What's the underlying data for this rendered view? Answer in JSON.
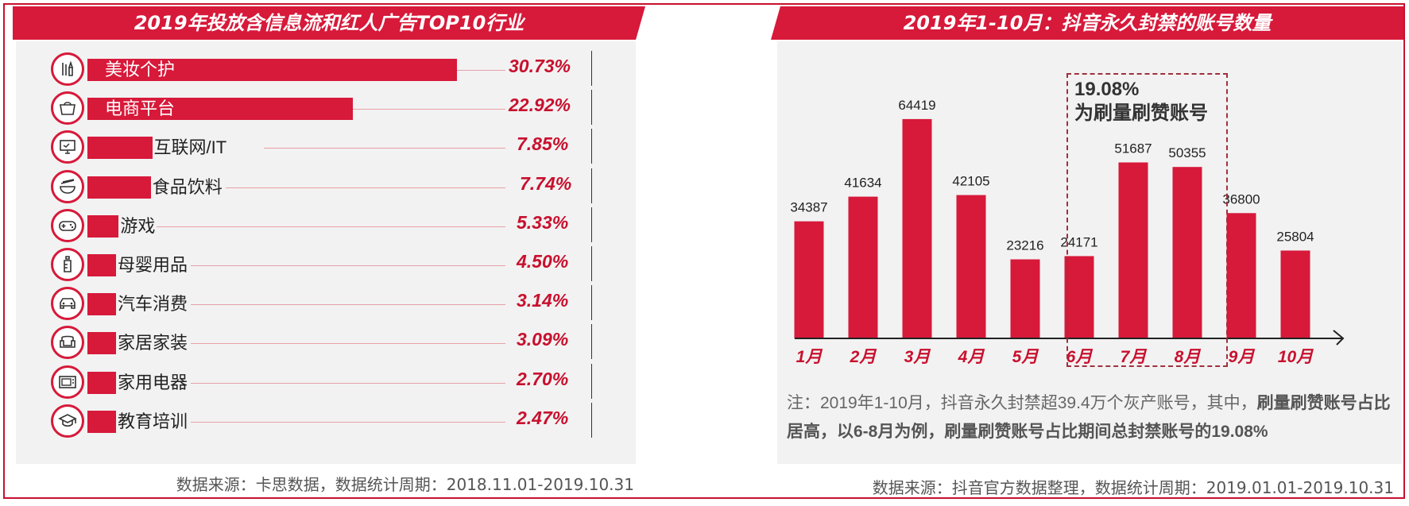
{
  "left": {
    "title": "2019年投放含信息流和红人广告TOP10行业",
    "source": "数据来源：卡思数据，数据统计周期：2018.11.01-2019.10.31"
  },
  "right": {
    "title": "2019年1-10月：抖音永久封禁的账号数量",
    "annotation_pct": "19.08%",
    "annotation_text": "为刷量刷赞账号",
    "note_plain": "注：2019年1-10月，抖音永久封禁超39.4万个灰产账号，其中，",
    "note_bold": "刷量刷赞账号占比居高，以6-8月为例，刷量刷赞账号占比期间总封禁账号的19.08%",
    "source": "数据来源：抖音官方数据整理，数据统计周期：2019.01.01-2019.10.31"
  },
  "colors": {
    "accent": "#d7193a",
    "pct": "#c8102e"
  },
  "chart_data": [
    {
      "type": "bar",
      "orientation": "horizontal",
      "title": "2019年投放含信息流和红人广告TOP10行业",
      "categories": [
        "美妆个护",
        "电商平台",
        "互联网/IT",
        "食品饮料",
        "游戏",
        "母婴用品",
        "汽车消费",
        "家居家装",
        "家用电器",
        "教育培训"
      ],
      "values": [
        30.73,
        22.92,
        7.85,
        7.74,
        5.33,
        4.5,
        3.14,
        3.09,
        2.7,
        2.47
      ],
      "labels": [
        "30.73%",
        "22.92%",
        "7.85%",
        "7.74%",
        "5.33%",
        "4.50%",
        "3.14%",
        "3.09%",
        "2.70%",
        "2.47%"
      ],
      "icons": [
        "cosmetics-icon",
        "shopping-bag-icon",
        "computer-icon",
        "food-bowl-icon",
        "gamepad-icon",
        "baby-bottle-icon",
        "car-icon",
        "sofa-icon",
        "appliance-icon",
        "graduation-cap-icon"
      ]
    },
    {
      "type": "bar",
      "title": "2019年1-10月：抖音永久封禁的账号数量",
      "categories": [
        "1月",
        "2月",
        "3月",
        "4月",
        "5月",
        "6月",
        "7月",
        "8月",
        "9月",
        "10月"
      ],
      "values": [
        34387,
        41634,
        64419,
        42105,
        23216,
        24171,
        51687,
        50355,
        36800,
        25804
      ],
      "ylim": [
        0,
        70000
      ],
      "highlight_categories": [
        "6月",
        "7月",
        "8月"
      ]
    }
  ]
}
